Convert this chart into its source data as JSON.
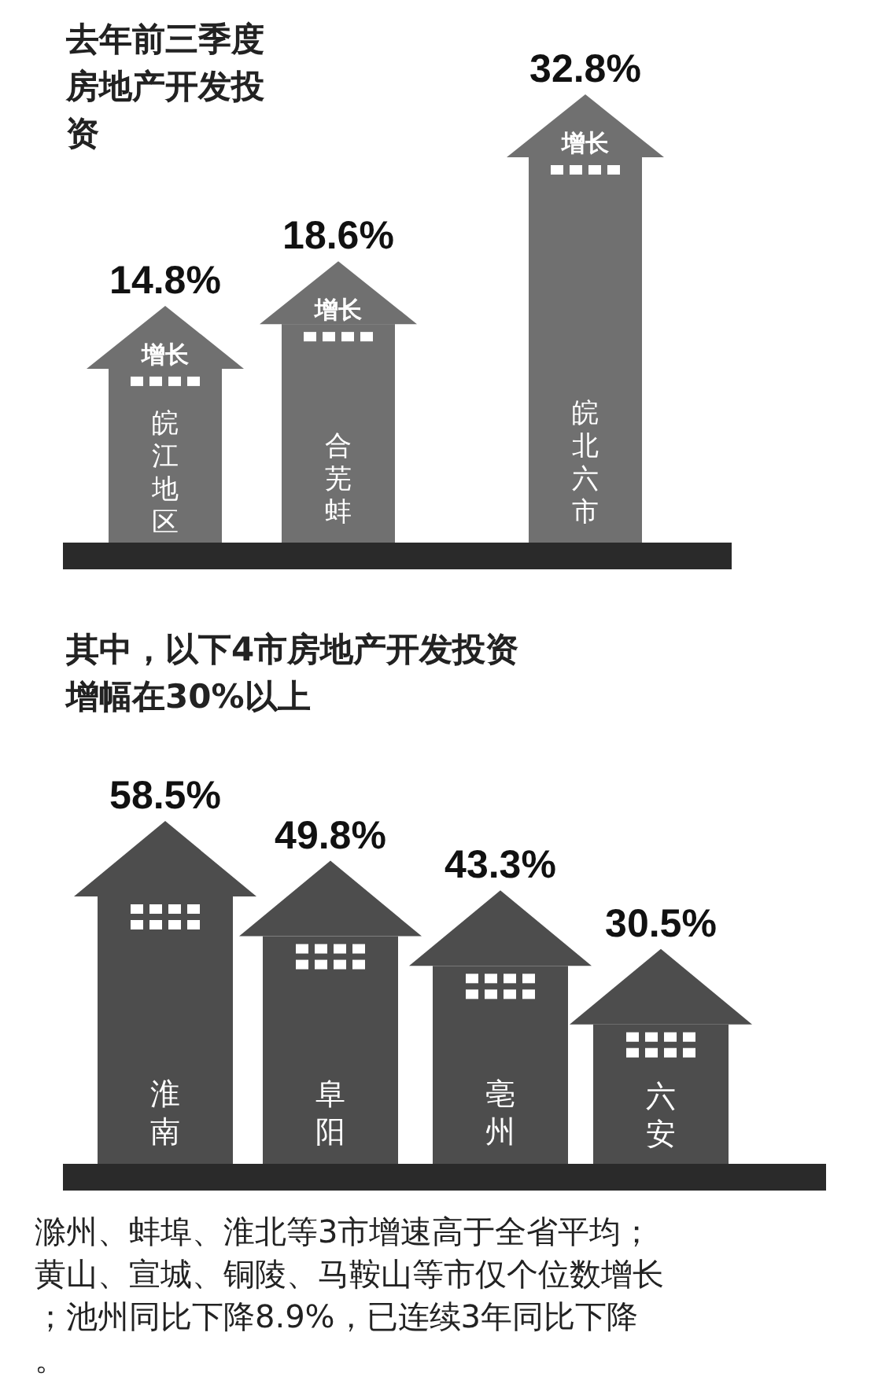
{
  "chart_data": [
    {
      "type": "bar",
      "title": "去年前三季度房地产开发投资",
      "categories": [
        "皖江地区",
        "合芜蚌",
        "皖北六市"
      ],
      "values": [
        14.8,
        18.6,
        32.8
      ],
      "value_labels": [
        "14.8%",
        "18.6%",
        "32.8%"
      ],
      "color": "#707070",
      "annotations": [
        "增长",
        "增长",
        "增长"
      ]
    },
    {
      "type": "bar",
      "title": "其中，以下4市房地产开发投资增幅在30%以上",
      "categories": [
        "淮南",
        "阜阳",
        "亳州",
        "六安"
      ],
      "values": [
        58.5,
        49.8,
        43.3,
        30.5
      ],
      "value_labels": [
        "58.5%",
        "49.8%",
        "43.3%",
        "30.5%"
      ],
      "color": "#4d4d4d",
      "annotations": [
        "滁州、蚌埠、淮北等3市增速高于全省平均；黄山、宣城、铜陵、马鞍山等市仅个位数增长；池州同比下降8.9%，已连续3年同比下降。"
      ]
    }
  ]
}
